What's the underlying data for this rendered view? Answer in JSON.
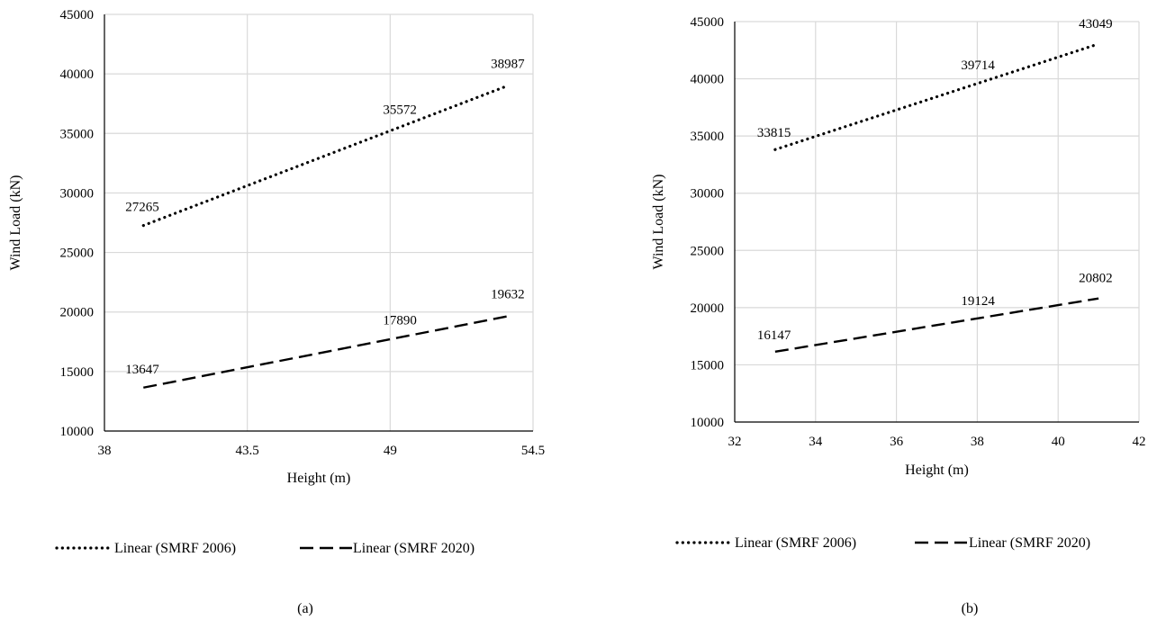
{
  "chart_data": [
    {
      "type": "line",
      "panel_label": "(a)",
      "xlabel": "Height (m)",
      "ylabel": "Wind Load (kN)",
      "xlim": [
        38,
        54.5
      ],
      "ylim": [
        10000,
        45000
      ],
      "xticks": [
        38,
        43.5,
        49,
        54.5
      ],
      "xtick_labels": [
        "38",
        "43.5",
        "49",
        "54.5"
      ],
      "yticks": [
        10000,
        15000,
        20000,
        25000,
        30000,
        35000,
        40000,
        45000
      ],
      "ytick_labels": [
        "10000",
        "15000",
        "20000",
        "25000",
        "30000",
        "35000",
        "40000",
        "45000"
      ],
      "grid": true,
      "legend_position": "bottom",
      "series": [
        {
          "name": "Linear (SMRF 2006)",
          "style": "dotted",
          "x": [
            39.5,
            49,
            53.5
          ],
          "y": [
            27265,
            35572,
            38987
          ],
          "labels": [
            "27265",
            "35572",
            "38987"
          ]
        },
        {
          "name": "Linear (SMRF 2020)",
          "style": "dashed",
          "x": [
            39.5,
            49,
            53.5
          ],
          "y": [
            13647,
            17890,
            19632
          ],
          "labels": [
            "13647",
            "17890",
            "19632"
          ]
        }
      ]
    },
    {
      "type": "line",
      "panel_label": "(b)",
      "xlabel": "Height (m)",
      "ylabel": "Wind Load (kN)",
      "xlim": [
        32,
        42
      ],
      "ylim": [
        10000,
        45000
      ],
      "xticks": [
        32,
        34,
        36,
        38,
        40,
        42
      ],
      "xtick_labels": [
        "32",
        "34",
        "36",
        "38",
        "40",
        "42"
      ],
      "yticks": [
        10000,
        15000,
        20000,
        25000,
        30000,
        35000,
        40000,
        45000
      ],
      "ytick_labels": [
        "10000",
        "15000",
        "20000",
        "25000",
        "30000",
        "35000",
        "40000",
        "45000"
      ],
      "grid": true,
      "legend_position": "bottom",
      "series": [
        {
          "name": "Linear (SMRF 2006)",
          "style": "dotted",
          "x": [
            33,
            38,
            41
          ],
          "y": [
            33815,
            39714,
            43049
          ],
          "labels": [
            "33815",
            "39714",
            "43049"
          ]
        },
        {
          "name": "Linear (SMRF 2020)",
          "style": "dashed",
          "x": [
            33,
            38,
            41
          ],
          "y": [
            16147,
            19124,
            20802
          ],
          "labels": [
            "16147",
            "19124",
            "20802"
          ]
        }
      ]
    }
  ]
}
